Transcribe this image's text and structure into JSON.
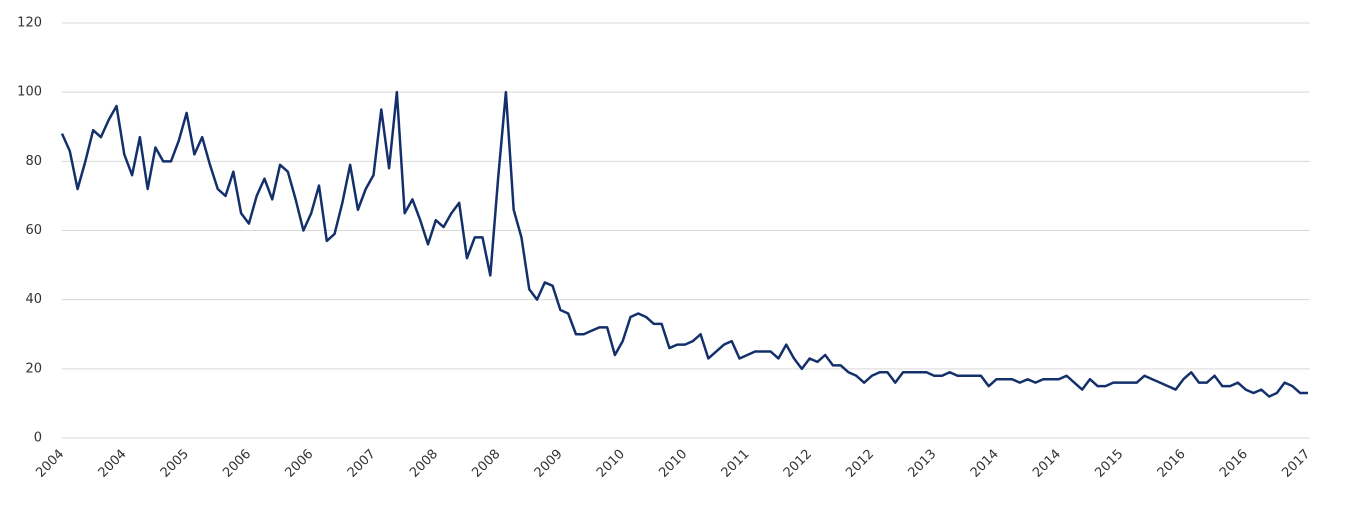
{
  "chart_data": {
    "type": "line",
    "color": "#14306b",
    "grid": true,
    "ylim": [
      0,
      120
    ],
    "yticks": [
      0,
      20,
      40,
      60,
      80,
      100,
      120
    ],
    "categories": [
      "2004",
      null,
      null,
      null,
      null,
      null,
      null,
      null,
      "2004",
      null,
      null,
      null,
      null,
      null,
      null,
      null,
      "2005",
      null,
      null,
      null,
      null,
      null,
      null,
      null,
      "2006",
      null,
      null,
      null,
      null,
      null,
      null,
      null,
      "2006",
      null,
      null,
      null,
      null,
      null,
      null,
      null,
      "2007",
      null,
      null,
      null,
      null,
      null,
      null,
      null,
      "2008",
      null,
      null,
      null,
      null,
      null,
      null,
      null,
      "2008",
      null,
      null,
      null,
      null,
      null,
      null,
      null,
      "2009",
      null,
      null,
      null,
      null,
      null,
      null,
      null,
      "2010",
      null,
      null,
      null,
      null,
      null,
      null,
      null,
      "2010",
      null,
      null,
      null,
      null,
      null,
      null,
      null,
      "2011",
      null,
      null,
      null,
      null,
      null,
      null,
      null,
      "2012",
      null,
      null,
      null,
      null,
      null,
      null,
      null,
      "2012",
      null,
      null,
      null,
      null,
      null,
      null,
      null,
      "2013",
      null,
      null,
      null,
      null,
      null,
      null,
      null,
      "2014",
      null,
      null,
      null,
      null,
      null,
      null,
      null,
      "2014",
      null,
      null,
      null,
      null,
      null,
      null,
      null,
      "2015",
      null,
      null,
      null,
      null,
      null,
      null,
      null,
      "2016",
      null,
      null,
      null,
      null,
      null,
      null,
      null,
      "2016",
      null,
      null,
      null,
      null,
      null,
      null,
      null,
      "2017"
    ],
    "values": [
      88,
      83,
      72,
      80,
      89,
      87,
      92,
      96,
      82,
      76,
      87,
      72,
      84,
      80,
      80,
      86,
      94,
      82,
      87,
      79,
      72,
      70,
      77,
      65,
      62,
      70,
      75,
      69,
      79,
      77,
      69,
      60,
      65,
      73,
      57,
      59,
      68,
      79,
      66,
      72,
      76,
      95,
      78,
      100,
      65,
      69,
      63,
      56,
      63,
      61,
      65,
      68,
      52,
      58,
      58,
      47,
      75,
      100,
      66,
      58,
      43,
      40,
      45,
      44,
      37,
      36,
      30,
      30,
      31,
      32,
      32,
      24,
      28,
      35,
      36,
      35,
      33,
      33,
      26,
      27,
      27,
      28,
      30,
      23,
      25,
      27,
      28,
      23,
      24,
      25,
      25,
      25,
      23,
      27,
      23,
      20,
      23,
      22,
      24,
      21,
      21,
      19,
      18,
      16,
      18,
      19,
      19,
      16,
      19,
      19,
      19,
      19,
      18,
      18,
      19,
      18,
      18,
      18,
      18,
      15,
      17,
      17,
      17,
      16,
      17,
      16,
      17,
      17,
      17,
      18,
      16,
      14,
      17,
      15,
      15,
      16,
      16,
      16,
      16,
      18,
      17,
      16,
      15,
      14,
      17,
      19,
      16,
      16,
      18,
      15,
      15,
      16,
      14,
      13,
      14,
      12,
      13,
      16,
      15,
      13,
      13
    ]
  }
}
